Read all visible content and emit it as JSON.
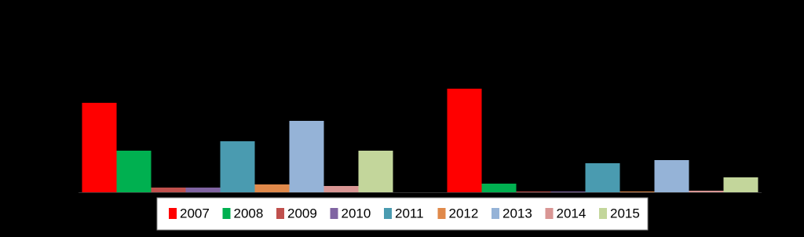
{
  "chart_data": {
    "type": "bar",
    "categories": [
      null,
      null
    ],
    "series": [
      {
        "name": "2007",
        "color": "#ff0000",
        "values": [
          114,
          132
        ]
      },
      {
        "name": "2008",
        "color": "#00b050",
        "values": [
          53,
          11
        ]
      },
      {
        "name": "2009",
        "color": "#c0504d",
        "values": [
          6,
          1
        ]
      },
      {
        "name": "2010",
        "color": "#8064a2",
        "values": [
          6,
          1
        ]
      },
      {
        "name": "2011",
        "color": "#4a9bb0",
        "values": [
          65,
          37
        ]
      },
      {
        "name": "2012",
        "color": "#e0894a",
        "values": [
          10,
          1
        ]
      },
      {
        "name": "2013",
        "color": "#95b3d7",
        "values": [
          91,
          41
        ]
      },
      {
        "name": "2014",
        "color": "#d99694",
        "values": [
          8,
          2
        ]
      },
      {
        "name": "2015",
        "color": "#c3d69b",
        "values": [
          53,
          19
        ]
      }
    ],
    "ylim": [
      0,
      235
    ],
    "legend": "bottom"
  }
}
